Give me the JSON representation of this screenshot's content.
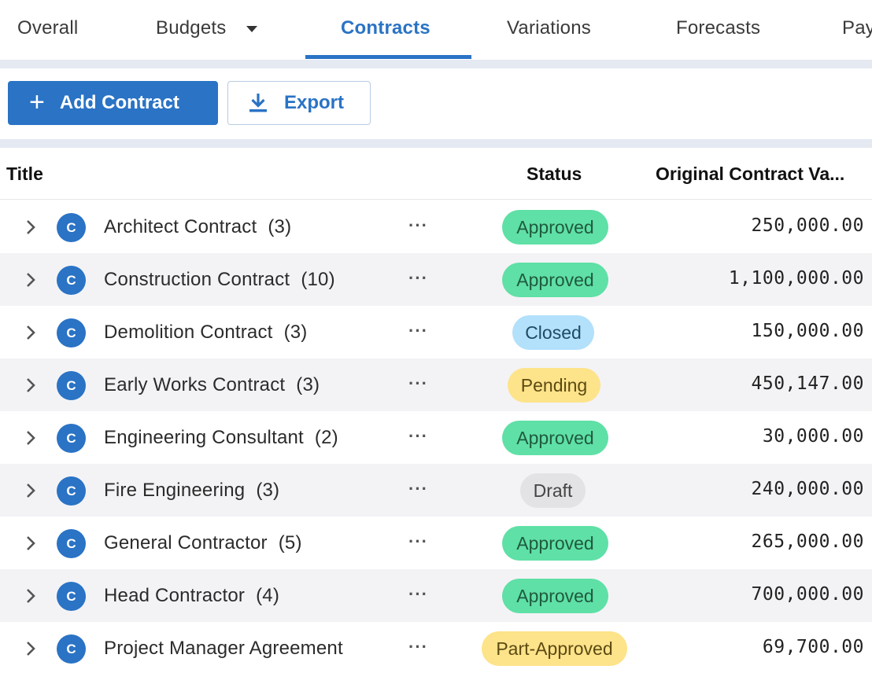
{
  "tabs": [
    {
      "label": "Overall",
      "active": false
    },
    {
      "label": "Budgets",
      "active": false,
      "has_dropdown": true
    },
    {
      "label": "Contracts",
      "active": true
    },
    {
      "label": "Variations",
      "active": false
    },
    {
      "label": "Forecasts",
      "active": false
    },
    {
      "label": "Pay",
      "active": false
    }
  ],
  "toolbar": {
    "add_label": "Add Contract",
    "add_icon": "plus-icon",
    "export_label": "Export",
    "export_icon": "download-icon"
  },
  "table": {
    "columns": {
      "title": "Title",
      "status": "Status",
      "value": "Original Contract Va..."
    },
    "rows": [
      {
        "icon_letter": "C",
        "title": "Architect Contract",
        "count": "(3)",
        "status": "Approved",
        "value": "250,000.00"
      },
      {
        "icon_letter": "C",
        "title": "Construction Contract",
        "count": "(10)",
        "status": "Approved",
        "value": "1,100,000.00"
      },
      {
        "icon_letter": "C",
        "title": "Demolition Contract",
        "count": "(3)",
        "status": "Closed",
        "value": "150,000.00"
      },
      {
        "icon_letter": "C",
        "title": "Early Works Contract",
        "count": "(3)",
        "status": "Pending",
        "value": "450,147.00"
      },
      {
        "icon_letter": "C",
        "title": "Engineering Consultant",
        "count": "(2)",
        "status": "Approved",
        "value": "30,000.00"
      },
      {
        "icon_letter": "C",
        "title": "Fire Engineering",
        "count": "(3)",
        "status": "Draft",
        "value": "240,000.00"
      },
      {
        "icon_letter": "C",
        "title": "General Contractor",
        "count": "(5)",
        "status": "Approved",
        "value": "265,000.00"
      },
      {
        "icon_letter": "C",
        "title": "Head Contractor",
        "count": "(4)",
        "status": "Approved",
        "value": "700,000.00"
      },
      {
        "icon_letter": "C",
        "title": "Project Manager Agreement",
        "count": "",
        "status": "Part-Approved",
        "value": "69,700.00"
      }
    ]
  },
  "status_colors": {
    "Approved": {
      "bg": "#5fe0a6",
      "fg": "#1f5a3f"
    },
    "Closed": {
      "bg": "#b3e0fb",
      "fg": "#1f4a66"
    },
    "Pending": {
      "bg": "#fde38a",
      "fg": "#5c4a12"
    },
    "Draft": {
      "bg": "#e3e3e6",
      "fg": "#444444"
    },
    "Part-Approved": {
      "bg": "#fde38a",
      "fg": "#5c4a12"
    }
  },
  "colors": {
    "accent": "#2a73c5",
    "band": "#e4e9f2",
    "row_alt": "#f3f3f6"
  }
}
